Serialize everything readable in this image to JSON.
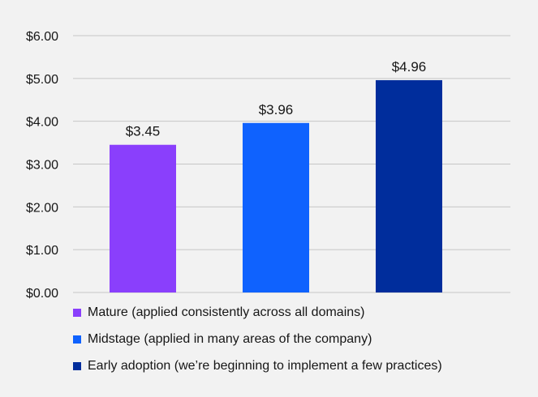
{
  "chart_data": {
    "type": "bar",
    "title": "",
    "xlabel": "",
    "ylabel": "",
    "categories": [
      "Mature (applied consistently across all domains)",
      "Midstage (applied in many areas of the company)",
      "Early adoption (we’re beginning to implement a few practices)"
    ],
    "values": [
      3.45,
      3.96,
      4.96
    ],
    "data_labels": [
      "$3.45",
      "$3.96",
      "$4.96"
    ],
    "colors": [
      "#8a3ffc",
      "#0f62fe",
      "#002d9c"
    ],
    "ylim": [
      0,
      6
    ],
    "yticks": [
      0,
      1,
      2,
      3,
      4,
      5,
      6
    ],
    "ytick_labels": [
      "$0.00",
      "$1.00",
      "$2.00",
      "$3.00",
      "$4.00",
      "$5.00",
      "$6.00"
    ],
    "grid": true,
    "legend_position": "bottom"
  },
  "colors": {
    "background": "#f2f2f2",
    "gridline": "#c6c6c6"
  }
}
